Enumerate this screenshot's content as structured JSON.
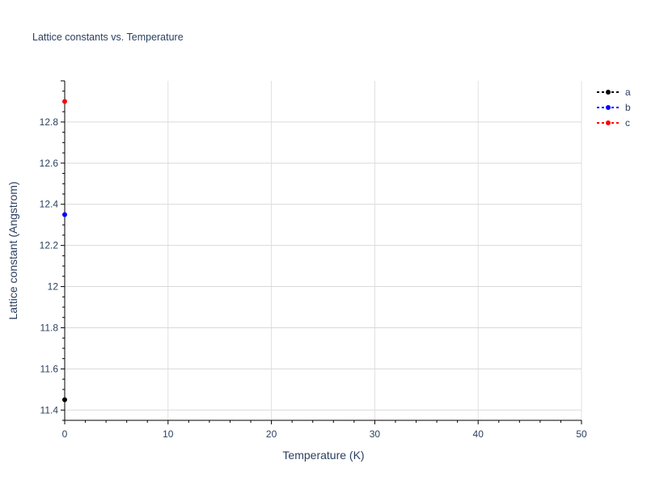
{
  "chart_data": {
    "type": "scatter",
    "mode": "lines+markers",
    "title": "Lattice constants vs. Temperature",
    "xlabel": "Temperature (K)",
    "ylabel": "Lattice constant (Angstrom)",
    "xlim": [
      0,
      50
    ],
    "ylim": [
      11.35,
      13.0
    ],
    "xticks": [
      0,
      10,
      20,
      30,
      40,
      50
    ],
    "yticks": [
      11.4,
      11.6,
      11.8,
      12,
      12.2,
      12.4,
      12.6,
      12.8
    ],
    "ytick_labels": [
      "11.4",
      "11.6",
      "11.8",
      "12",
      "12.2",
      "12.4",
      "12.6",
      "12.8"
    ],
    "grid": true,
    "legend_position": "top-right",
    "series": [
      {
        "name": "a",
        "color": "#000000",
        "x": [
          0
        ],
        "y": [
          11.45
        ]
      },
      {
        "name": "b",
        "color": "#0000ff",
        "x": [
          0
        ],
        "y": [
          12.35
        ]
      },
      {
        "name": "c",
        "color": "#ff0000",
        "x": [
          0
        ],
        "y": [
          12.9
        ]
      }
    ]
  }
}
